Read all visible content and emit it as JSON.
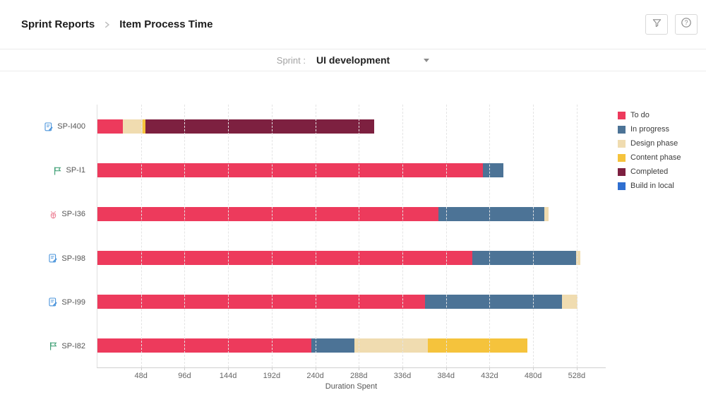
{
  "breadcrumb": {
    "parent": "Sprint Reports",
    "current": "Item Process Time"
  },
  "toolbar": {
    "buttons": [
      {
        "icon": "funnel-icon"
      },
      {
        "icon": "question-icon"
      }
    ]
  },
  "sprint_selector": {
    "label": "Sprint :",
    "value": "UI development",
    "icon": "dropdown-caret-icon"
  },
  "chart_data": {
    "type": "bar",
    "orientation": "horizontal",
    "stacked": true,
    "title": "Item Process Time",
    "xlabel": "Duration Spent",
    "xlim": [
      0,
      560
    ],
    "grid": "vertical-dashed",
    "legend_position": "right",
    "ticks": [
      {
        "value": 48,
        "label": "48d"
      },
      {
        "value": 96,
        "label": "96d"
      },
      {
        "value": 144,
        "label": "144d"
      },
      {
        "value": 192,
        "label": "192d"
      },
      {
        "value": 240,
        "label": "240d"
      },
      {
        "value": 288,
        "label": "288d"
      },
      {
        "value": 336,
        "label": "336d"
      },
      {
        "value": 384,
        "label": "384d"
      },
      {
        "value": 432,
        "label": "432d"
      },
      {
        "value": 480,
        "label": "480d"
      },
      {
        "value": 528,
        "label": "528d"
      }
    ],
    "colors": {
      "To do": "#ED3A5C",
      "In progress": "#4C7396",
      "Design phase": "#F0DCB0",
      "Content phase": "#F5C33C",
      "Completed": "#7D2040",
      "Build in local": "#2F6FD0"
    },
    "legend": [
      "To do",
      "In progress",
      "Design phase",
      "Content phase",
      "Completed",
      "Build in local"
    ],
    "rows": [
      {
        "label": "SP-I400",
        "icon": "task-icon",
        "segments": [
          {
            "status": "To do",
            "days": 28
          },
          {
            "status": "Design phase",
            "days": 22
          },
          {
            "status": "Content phase",
            "days": 3
          },
          {
            "status": "Completed",
            "days": 252
          }
        ]
      },
      {
        "label": "SP-I1",
        "icon": "flag-icon",
        "segments": [
          {
            "status": "To do",
            "days": 425
          },
          {
            "status": "In progress",
            "days": 22
          }
        ]
      },
      {
        "label": "SP-I36",
        "icon": "bug-icon",
        "segments": [
          {
            "status": "To do",
            "days": 376
          },
          {
            "status": "In progress",
            "days": 116
          },
          {
            "status": "Design phase",
            "days": 5
          }
        ]
      },
      {
        "label": "SP-I98",
        "icon": "task-icon",
        "segments": [
          {
            "status": "To do",
            "days": 413
          },
          {
            "status": "In progress",
            "days": 114
          },
          {
            "status": "Design phase",
            "days": 5
          }
        ]
      },
      {
        "label": "SP-I99",
        "icon": "task-icon",
        "segments": [
          {
            "status": "To do",
            "days": 361
          },
          {
            "status": "In progress",
            "days": 151
          },
          {
            "status": "Design phase",
            "days": 17
          }
        ]
      },
      {
        "label": "SP-I82",
        "icon": "flag-icon",
        "segments": [
          {
            "status": "To do",
            "days": 236
          },
          {
            "status": "In progress",
            "days": 47
          },
          {
            "status": "Design phase",
            "days": 81
          },
          {
            "status": "Content phase",
            "days": 110
          }
        ]
      }
    ]
  }
}
